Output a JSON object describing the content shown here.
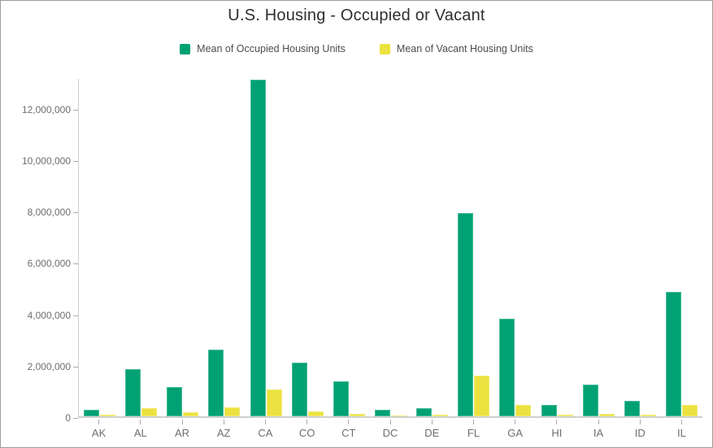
{
  "window": {
    "background": "#ffffff",
    "border_color": "#9e9e9e"
  },
  "header": {
    "title": "U.S. Housing - Occupied or Vacant"
  },
  "legend": {
    "position": "top",
    "items": [
      {
        "slug": "occupied",
        "label": "Mean of Occupied Housing Units",
        "color": "#00a173"
      },
      {
        "slug": "vacant",
        "label": "Mean of Vacant Housing Units",
        "color": "#ece23f"
      }
    ]
  },
  "axes": {
    "line_color": "#cfcfcf",
    "tick_color": "#ababab",
    "label_color": "#6e6e6e"
  },
  "chart_data": {
    "type": "bar",
    "title": "U.S. Housing - Occupied or Vacant",
    "xlabel": "",
    "ylabel": "",
    "grid": false,
    "legend_position": "top",
    "ylim": [
      0,
      13200000
    ],
    "yticks": [
      0,
      2000000,
      4000000,
      6000000,
      8000000,
      10000000,
      12000000
    ],
    "ytick_labels": [
      "0",
      "2,000,000",
      "4,000,000",
      "6,000,000",
      "8,000,000",
      "10,000,000",
      "12,000,000"
    ],
    "categories": [
      "AK",
      "AL",
      "AR",
      "AZ",
      "CA",
      "CO",
      "CT",
      "DC",
      "DE",
      "FL",
      "GA",
      "HI",
      "IA",
      "ID",
      "IL"
    ],
    "series": [
      {
        "name": "Mean of Occupied Housing Units",
        "slug": "occupied",
        "color": "#00a173",
        "values": [
          250000,
          1850000,
          1130000,
          2600000,
          13100000,
          2090000,
          1350000,
          240000,
          330000,
          7900000,
          3790000,
          430000,
          1220000,
          600000,
          4850000
        ]
      },
      {
        "name": "Mean of Vacant Housing Units",
        "slug": "vacant",
        "color": "#ece23f",
        "values": [
          50000,
          320000,
          160000,
          340000,
          1060000,
          180000,
          90000,
          30000,
          50000,
          1580000,
          430000,
          60000,
          90000,
          60000,
          450000
        ]
      }
    ]
  }
}
